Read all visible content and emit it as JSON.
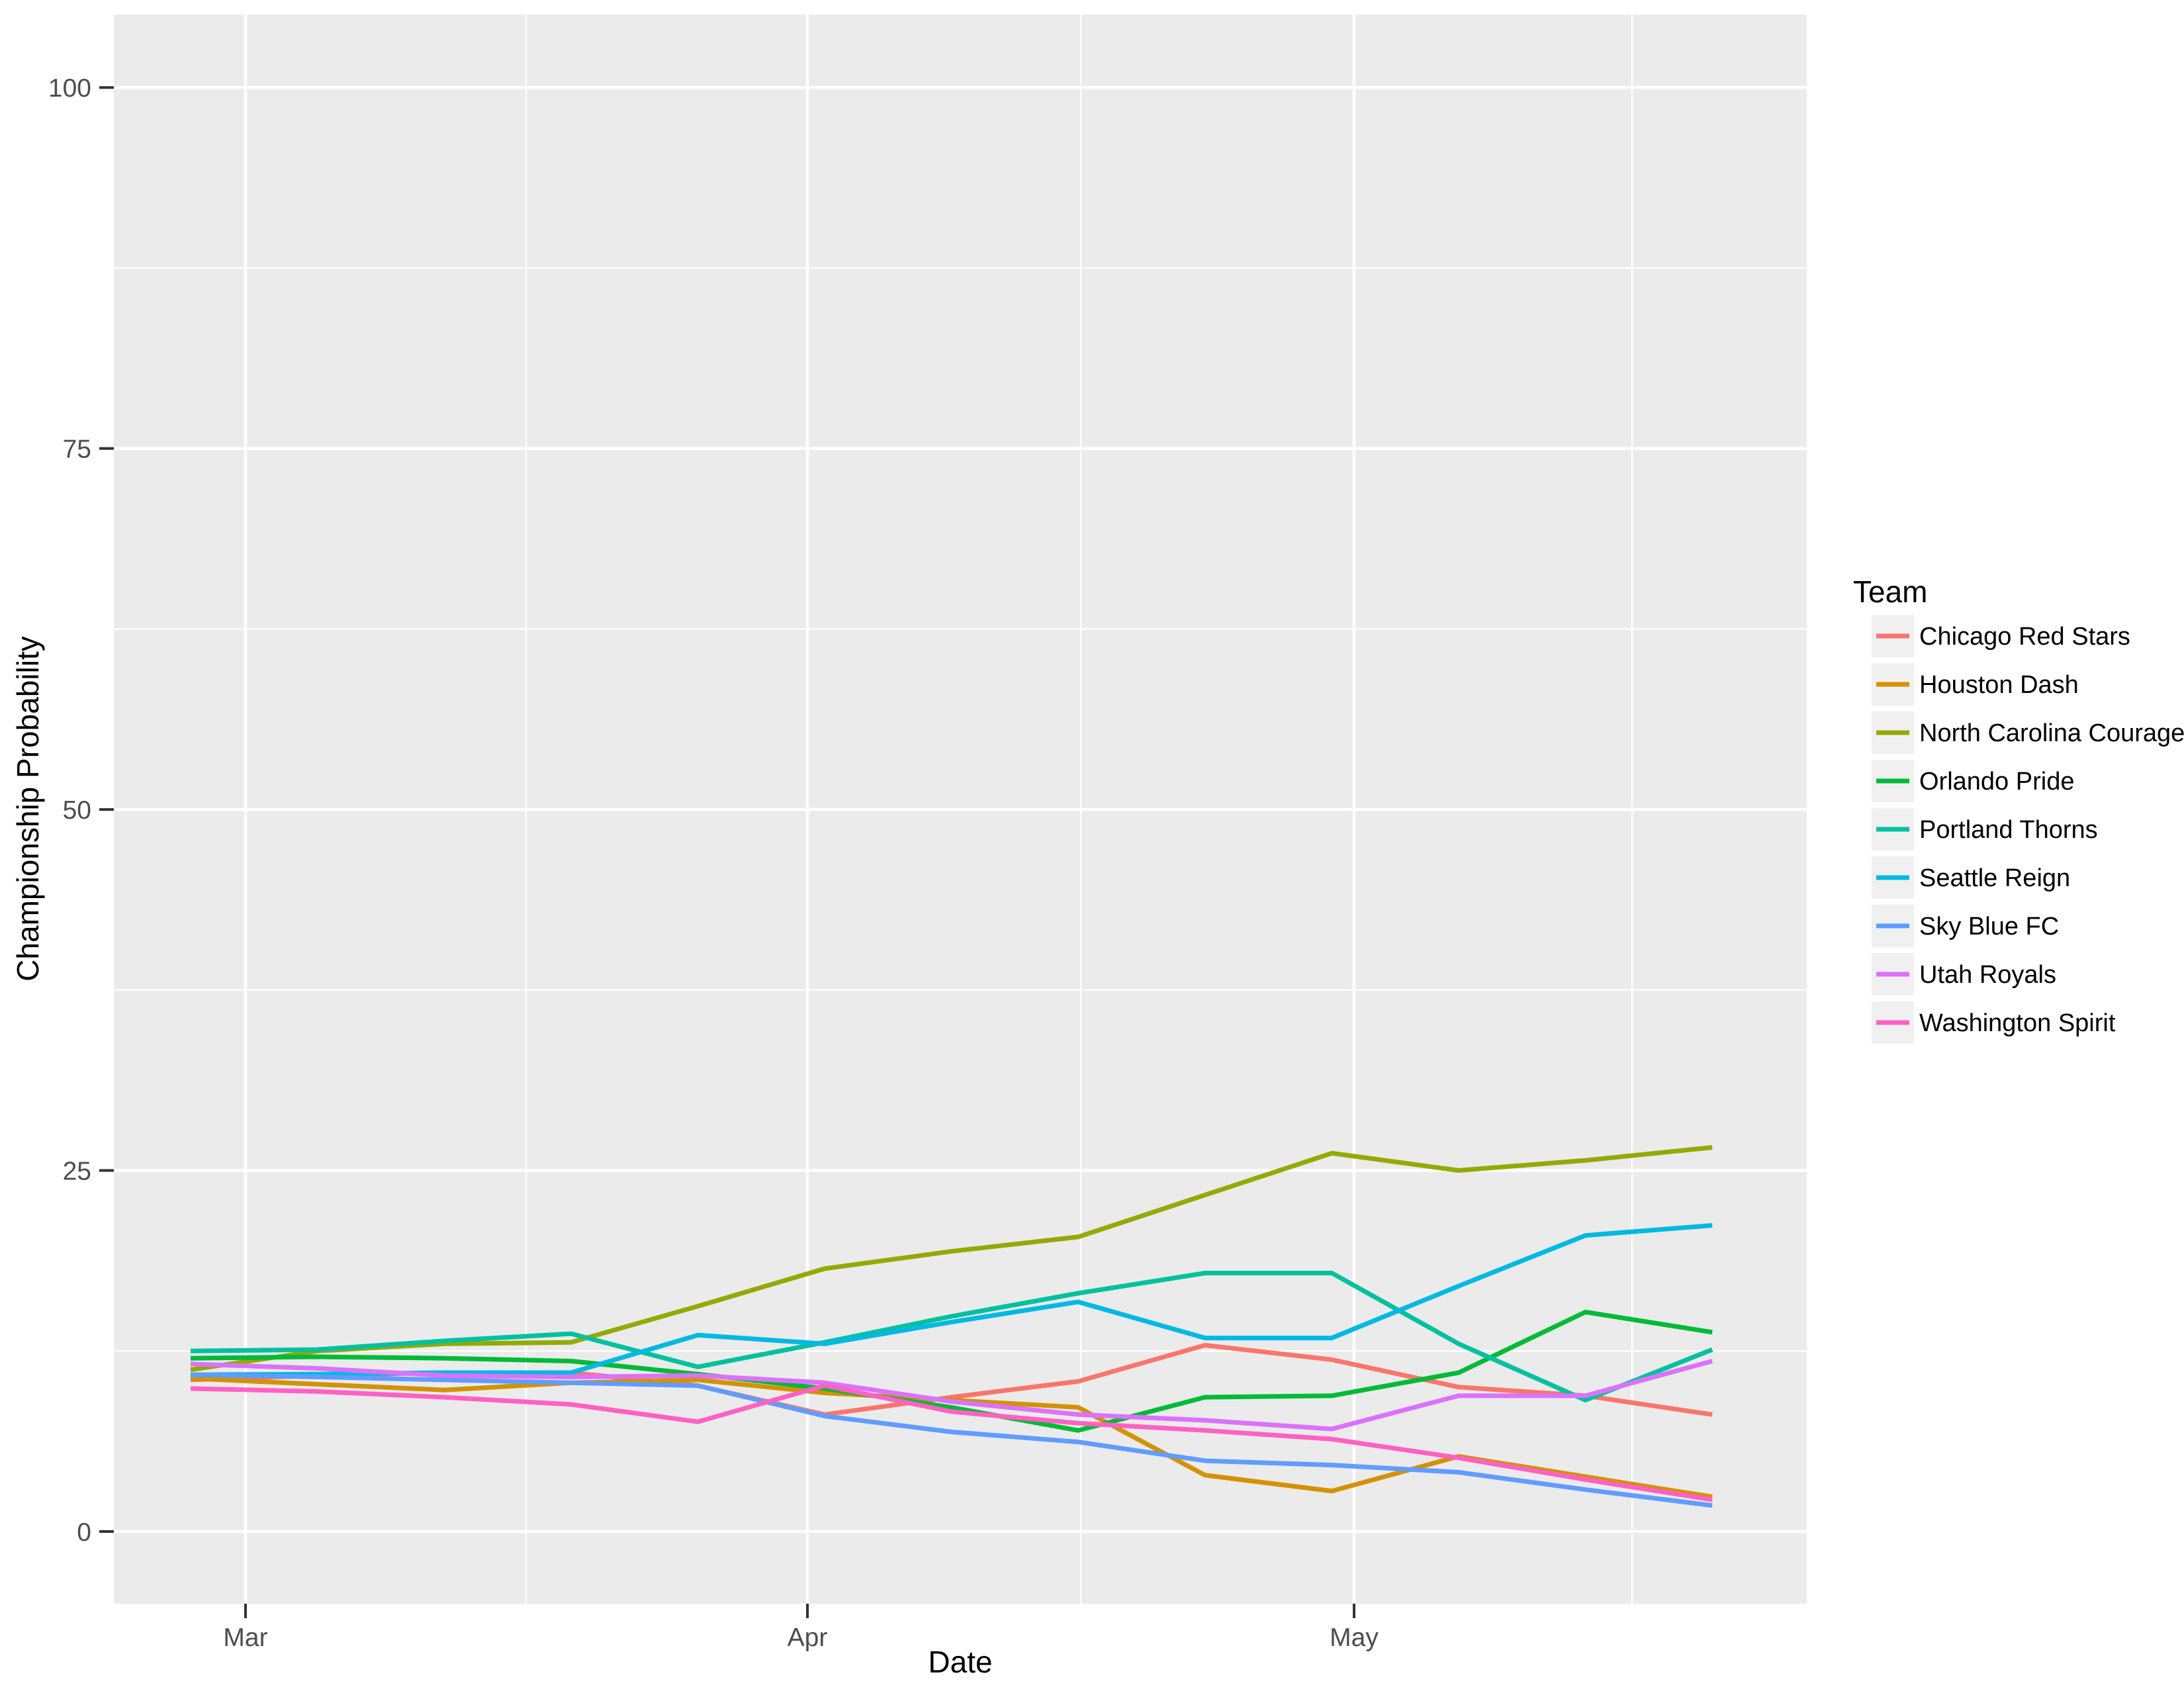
{
  "chart_data": {
    "type": "line",
    "title": "",
    "xlabel": "Date",
    "ylabel": "Championship Probability",
    "legend_title": "Team",
    "legend_position": "right",
    "x": [
      "Feb 26",
      "Mar 5",
      "Mar 12",
      "Mar 19",
      "Mar 26",
      "Apr 2",
      "Apr 9",
      "Apr 16",
      "Apr 23",
      "Apr 30",
      "May 7",
      "May 14",
      "May 21"
    ],
    "x_tick_labels": [
      "Mar",
      "Apr",
      "May"
    ],
    "y_tick_labels": [
      "0",
      "25",
      "50",
      "75",
      "100"
    ],
    "y_tick_values": [
      0,
      25,
      50,
      75,
      100
    ],
    "ylim": [
      0,
      100
    ],
    "grid": "white major and minor gridlines on gray panel",
    "panel_bg": "#EBEBEB",
    "gridline_color": "#FFFFFF",
    "tick_text_color": "#4D4D4D",
    "legend_key_bg": "#F0F0F0",
    "series": [
      {
        "name": "Chicago Red Stars",
        "color": "#F8766D",
        "values": [
          10.5,
          10.8,
          11.0,
          11.0,
          10.1,
          8.1,
          9.3,
          10.4,
          12.9,
          11.9,
          10.0,
          9.4,
          8.1
        ]
      },
      {
        "name": "Houston Dash",
        "color": "#D39200",
        "values": [
          10.6,
          10.2,
          9.8,
          10.3,
          10.5,
          9.6,
          9.1,
          8.6,
          3.9,
          2.8,
          5.2,
          3.8,
          2.4
        ]
      },
      {
        "name": "North Carolina Courage",
        "color": "#93AA00",
        "values": [
          11.2,
          12.5,
          13.0,
          13.1,
          15.6,
          18.2,
          19.4,
          20.4,
          23.3,
          26.2,
          25.0,
          25.7,
          26.6
        ]
      },
      {
        "name": "Orlando Pride",
        "color": "#00BA38",
        "values": [
          12.0,
          12.1,
          12.0,
          11.8,
          10.9,
          9.9,
          8.6,
          7.0,
          9.3,
          9.4,
          11.0,
          15.2,
          13.8
        ]
      },
      {
        "name": "Portland Thorns",
        "color": "#00C19F",
        "values": [
          12.5,
          12.6,
          13.2,
          13.7,
          11.4,
          13.1,
          14.9,
          16.5,
          17.9,
          17.9,
          13.0,
          9.1,
          12.6
        ]
      },
      {
        "name": "Seattle Reign",
        "color": "#00B9E3",
        "values": [
          10.85,
          10.9,
          11.0,
          11.0,
          13.6,
          13.0,
          14.5,
          15.9,
          13.4,
          13.4,
          17.0,
          20.5,
          21.2
        ]
      },
      {
        "name": "Sky Blue FC",
        "color": "#619CFF",
        "values": [
          10.85,
          10.7,
          10.5,
          10.3,
          10.1,
          8.0,
          6.9,
          6.2,
          4.9,
          4.6,
          4.1,
          2.9,
          1.8
        ]
      },
      {
        "name": "Utah Royals",
        "color": "#DB72FB",
        "values": [
          11.6,
          11.3,
          10.8,
          10.7,
          10.8,
          10.3,
          9.0,
          8.1,
          7.7,
          7.1,
          9.4,
          9.4,
          11.8
        ]
      },
      {
        "name": "Washington Spirit",
        "color": "#FF61C3",
        "values": [
          9.9,
          9.7,
          9.3,
          8.8,
          7.6,
          10.1,
          8.3,
          7.5,
          7.0,
          6.4,
          5.1,
          3.6,
          2.2
        ]
      }
    ]
  }
}
